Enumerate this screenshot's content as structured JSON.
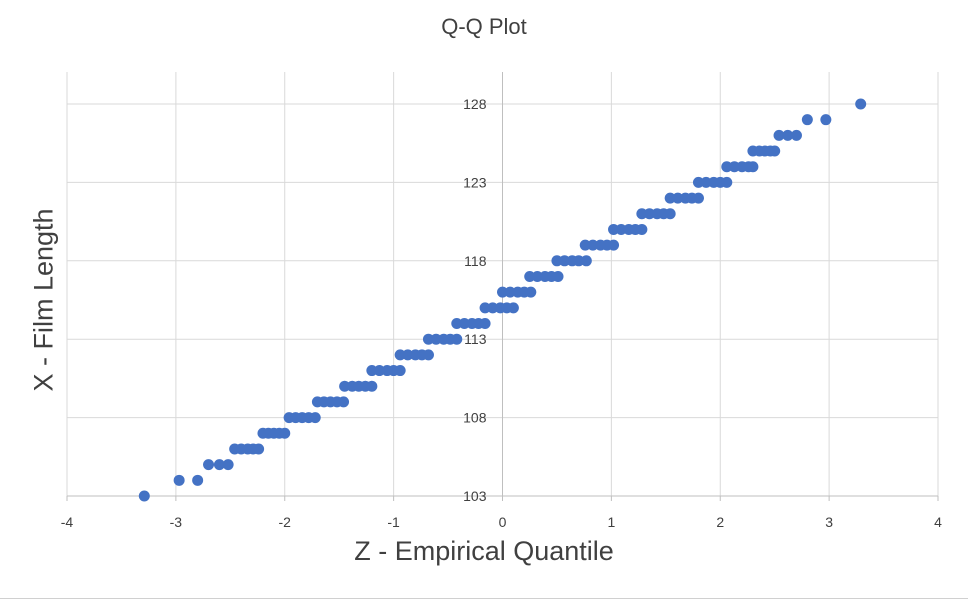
{
  "chart_data": {
    "type": "scatter",
    "title": "Q-Q Plot",
    "xlabel": "Z - Empirical Quantile",
    "ylabel": "X - Film Length",
    "xlim": [
      -4,
      4
    ],
    "ylim": [
      103,
      129
    ],
    "x_ticks": [
      -4,
      -3,
      -2,
      -1,
      0,
      1,
      2,
      3,
      4
    ],
    "y_ticks": [
      103,
      108,
      113,
      118,
      123,
      128
    ],
    "grid": true,
    "legend": "none",
    "marker_color": "#4472C4",
    "series": [
      {
        "points": [
          {
            "y": 103,
            "x": [
              -3.29
            ]
          },
          {
            "y": 104,
            "x": [
              -2.97,
              -2.8
            ]
          },
          {
            "y": 105,
            "x": [
              -2.7,
              -2.6,
              -2.52
            ]
          },
          {
            "y": 106,
            "x": [
              -2.46,
              -2.4,
              -2.34,
              -2.29,
              -2.24
            ]
          },
          {
            "y": 107,
            "x": [
              -2.2,
              -2.15,
              -2.1,
              -2.05,
              -2.0
            ]
          },
          {
            "y": 108,
            "x": [
              -1.96,
              -1.9,
              -1.84,
              -1.78,
              -1.72
            ]
          },
          {
            "y": 109,
            "x": [
              -1.7,
              -1.64,
              -1.58,
              -1.52,
              -1.46
            ]
          },
          {
            "y": 110,
            "x": [
              -1.45,
              -1.38,
              -1.32,
              -1.26,
              -1.2
            ]
          },
          {
            "y": 111,
            "x": [
              -1.2,
              -1.13,
              -1.06,
              -1.0,
              -0.94
            ]
          },
          {
            "y": 112,
            "x": [
              -0.94,
              -0.87,
              -0.8,
              -0.74,
              -0.68
            ]
          },
          {
            "y": 113,
            "x": [
              -0.68,
              -0.61,
              -0.54,
              -0.48,
              -0.42
            ]
          },
          {
            "y": 114,
            "x": [
              -0.42,
              -0.35,
              -0.28,
              -0.22,
              -0.16
            ]
          },
          {
            "y": 115,
            "x": [
              -0.16,
              -0.09,
              -0.02,
              0.04,
              0.1
            ]
          },
          {
            "y": 116,
            "x": [
              0.0,
              0.07,
              0.14,
              0.2,
              0.26
            ]
          },
          {
            "y": 117,
            "x": [
              0.25,
              0.32,
              0.39,
              0.45,
              0.51
            ]
          },
          {
            "y": 118,
            "x": [
              0.5,
              0.57,
              0.64,
              0.7,
              0.77
            ]
          },
          {
            "y": 119,
            "x": [
              0.76,
              0.83,
              0.9,
              0.96,
              1.02
            ]
          },
          {
            "y": 120,
            "x": [
              1.02,
              1.09,
              1.16,
              1.22,
              1.28
            ]
          },
          {
            "y": 121,
            "x": [
              1.28,
              1.35,
              1.42,
              1.48,
              1.54
            ]
          },
          {
            "y": 122,
            "x": [
              1.54,
              1.61,
              1.68,
              1.74,
              1.8
            ]
          },
          {
            "y": 123,
            "x": [
              1.8,
              1.87,
              1.94,
              2.0,
              2.06
            ]
          },
          {
            "y": 124,
            "x": [
              2.06,
              2.13,
              2.2,
              2.26,
              2.3
            ]
          },
          {
            "y": 125,
            "x": [
              2.3,
              2.36,
              2.41,
              2.46,
              2.5
            ]
          },
          {
            "y": 126,
            "x": [
              2.54,
              2.62,
              2.7
            ]
          },
          {
            "y": 127,
            "x": [
              2.8,
              2.97
            ]
          },
          {
            "y": 128,
            "x": [
              3.29
            ]
          }
        ]
      }
    ]
  }
}
